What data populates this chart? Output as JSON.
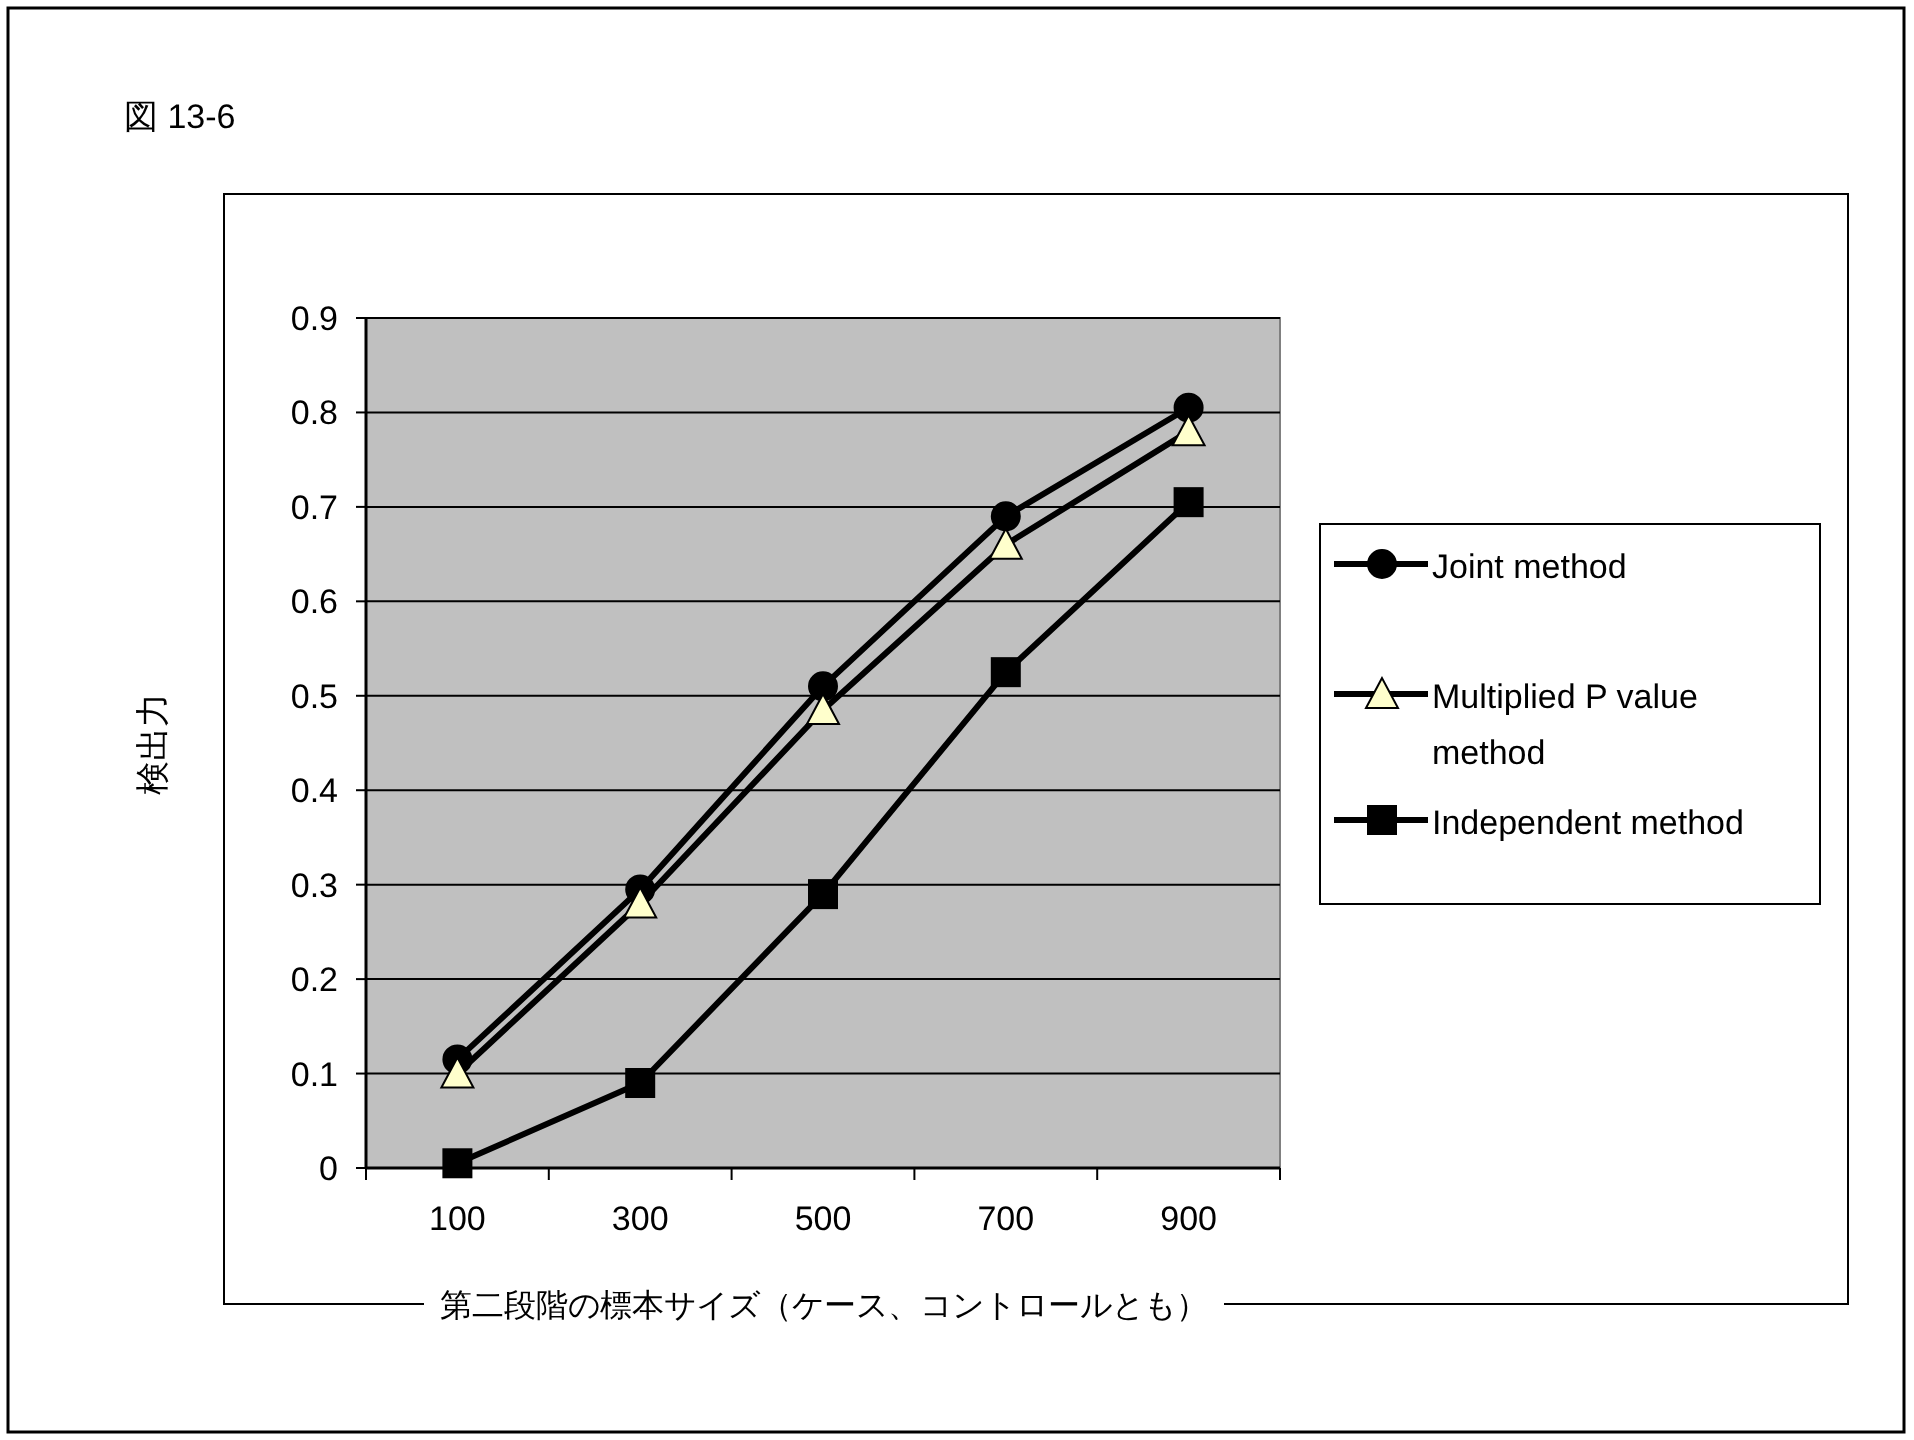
{
  "chart_data": {
    "type": "line",
    "title": "図 13-6",
    "xlabel": "第二段階の標本サイズ（ケース、コントロールとも）",
    "ylabel": "検出力",
    "categories": [
      "100",
      "300",
      "500",
      "700",
      "900"
    ],
    "series": [
      {
        "name": "Joint method",
        "color": "#000000",
        "marker": "circle",
        "values": [
          0.115,
          0.295,
          0.51,
          0.69,
          0.805
        ]
      },
      {
        "name": "Multiplied P value method",
        "color": "#ffffcc",
        "marker": "triangle",
        "values": [
          0.1,
          0.28,
          0.485,
          0.66,
          0.78
        ]
      },
      {
        "name": "Independent method",
        "color": "#000000",
        "marker": "square",
        "values": [
          0.005,
          0.09,
          0.29,
          0.525,
          0.705
        ]
      }
    ],
    "ylim": [
      0,
      0.9
    ],
    "yticks": [
      0,
      0.1,
      0.2,
      0.3,
      0.4,
      0.5,
      0.6,
      0.7,
      0.8,
      0.9
    ],
    "grid": "y",
    "legend": "right",
    "line_style": "solid"
  }
}
